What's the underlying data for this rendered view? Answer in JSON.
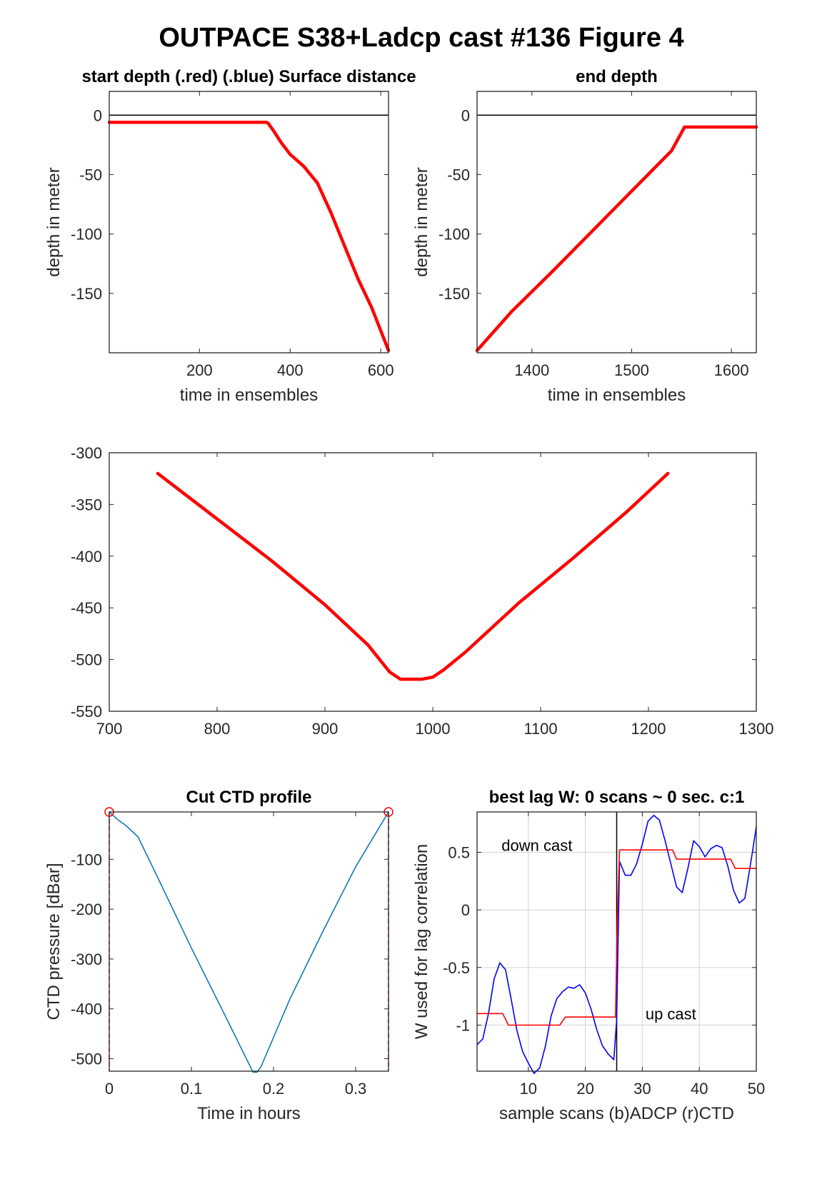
{
  "figure": {
    "title": "OUTPACE S38+Ladcp cast #136   Figure 4"
  },
  "chart_data": [
    {
      "id": "start",
      "type": "line",
      "title": "start depth (.red) (.blue) Surface distance",
      "xlabel": "time in ensembles",
      "ylabel": "depth in meter",
      "xlim": [
        1,
        617
      ],
      "ylim": [
        -200,
        20
      ],
      "xticks": [
        200,
        400,
        600
      ],
      "yticks": [
        0,
        -50,
        -100,
        -150
      ],
      "ref_lines": [
        {
          "y": 0,
          "color": "#000000"
        }
      ],
      "series": [
        {
          "color": "#ff0000",
          "x": [
            1,
            100,
            200,
            300,
            348,
            352,
            365,
            380,
            400,
            430,
            460,
            490,
            520,
            550,
            580,
            617
          ],
          "y": [
            -6,
            -6,
            -6,
            -6,
            -6,
            -7,
            -14,
            -23,
            -33,
            -43,
            -57,
            -82,
            -110,
            -138,
            -162,
            -198
          ]
        }
      ]
    },
    {
      "id": "end",
      "type": "line",
      "title": "end depth",
      "xlabel": "time in ensembles",
      "ylabel": "depth in meter",
      "xlim": [
        1345,
        1625
      ],
      "ylim": [
        -200,
        20
      ],
      "xticks": [
        1400,
        1500,
        1600
      ],
      "yticks": [
        0,
        -50,
        -100,
        -150
      ],
      "ref_lines": [
        {
          "y": 0,
          "color": "#000000"
        }
      ],
      "series": [
        {
          "color": "#ff0000",
          "x": [
            1345,
            1380,
            1420,
            1460,
            1500,
            1540,
            1553,
            1580,
            1625
          ],
          "y": [
            -198,
            -165,
            -132,
            -98,
            -64,
            -30,
            -10,
            -10,
            -10
          ]
        }
      ]
    },
    {
      "id": "middle",
      "type": "line",
      "title": "",
      "xlabel": "",
      "ylabel": "",
      "xlim": [
        700,
        1300
      ],
      "ylim": [
        -550,
        -300
      ],
      "xticks": [
        700,
        800,
        900,
        1000,
        1100,
        1200,
        1300
      ],
      "yticks": [
        -300,
        -350,
        -400,
        -450,
        -500,
        -550
      ],
      "series": [
        {
          "color": "#ff0000",
          "x": [
            745,
            800,
            850,
            900,
            940,
            960,
            970,
            990,
            1000,
            1010,
            1030,
            1080,
            1130,
            1180,
            1218
          ],
          "y": [
            -320,
            -364,
            -404,
            -447,
            -486,
            -512,
            -519,
            -519,
            -517,
            -510,
            -493,
            -445,
            -402,
            -357,
            -320
          ]
        }
      ]
    },
    {
      "id": "ctd",
      "type": "line",
      "title": "Cut CTD profile",
      "xlabel": "Time in hours",
      "ylabel": "CTD pressure [dBar]",
      "xlim": [
        0,
        0.34
      ],
      "ylim": [
        -525,
        -5
      ],
      "xticks": [
        0,
        0.1,
        0.2,
        0.3
      ],
      "xtick_labels": [
        "0",
        "0.1",
        "0.2",
        "0.3"
      ],
      "yticks": [
        -100,
        -200,
        -300,
        -400,
        -500
      ],
      "series": [
        {
          "color": "#0072bd",
          "x": [
            0,
            0.01,
            0.02,
            0.035,
            0.06,
            0.1,
            0.14,
            0.175,
            0.18,
            0.185,
            0.22,
            0.26,
            0.3,
            0.34
          ],
          "y": [
            -5,
            -20,
            -32,
            -55,
            -140,
            -278,
            -410,
            -527,
            -527,
            -515,
            -380,
            -245,
            -115,
            -5
          ]
        }
      ],
      "cut_markers": [
        {
          "x": 0,
          "y": -5
        },
        {
          "x": 0.34,
          "y": -5
        }
      ],
      "cut_lines_x": [
        0,
        0.34
      ]
    },
    {
      "id": "lag",
      "type": "line",
      "title": "best lag W: 0 scans ~ 0 sec.  c:1",
      "xlabel": "sample scans (b)ADCP (r)CTD",
      "ylabel": "W used for lag correlation",
      "xlim": [
        1,
        50
      ],
      "ylim": [
        -1.4,
        0.85
      ],
      "xticks": [
        10,
        20,
        30,
        40,
        50
      ],
      "yticks": [
        0.5,
        0,
        -0.5,
        -1
      ],
      "ytick_labels": [
        "0.5",
        "0",
        "-0.5",
        "-1"
      ],
      "grid": true,
      "divider_x": 25.5,
      "annotations": [
        "down cast",
        "up cast"
      ],
      "series": [
        {
          "name": "(b)ADCP",
          "color": "#0000ff",
          "x": [
            1,
            2,
            3,
            4,
            5,
            6,
            7,
            8,
            9,
            10,
            11,
            12,
            13,
            14,
            15,
            16,
            17,
            18,
            19,
            20,
            21,
            22,
            23,
            24,
            25,
            25.5,
            26,
            27,
            28,
            29,
            30,
            31,
            32,
            33,
            34,
            35,
            36,
            37,
            38,
            39,
            40,
            41,
            42,
            43,
            44,
            45,
            46,
            47,
            48,
            49,
            50
          ],
          "y": [
            -1.17,
            -1.12,
            -0.9,
            -0.6,
            -0.46,
            -0.52,
            -0.78,
            -1.05,
            -1.23,
            -1.33,
            -1.42,
            -1.37,
            -1.18,
            -0.92,
            -0.77,
            -0.71,
            -0.67,
            -0.68,
            -0.65,
            -0.72,
            -0.86,
            -1.04,
            -1.18,
            -1.25,
            -1.3,
            -0.95,
            0.42,
            0.3,
            0.3,
            0.4,
            0.57,
            0.77,
            0.82,
            0.78,
            0.6,
            0.4,
            0.2,
            0.15,
            0.36,
            0.6,
            0.55,
            0.46,
            0.53,
            0.56,
            0.54,
            0.38,
            0.17,
            0.06,
            0.1,
            0.4,
            0.72
          ]
        },
        {
          "name": "(r)CTD",
          "color": "#ff0000",
          "x": [
            1,
            5.5,
            6.5,
            15.5,
            16.5,
            25.3,
            25.6,
            26,
            35.3,
            36,
            45.5,
            46.3,
            50
          ],
          "y": [
            -0.9,
            -0.9,
            -1.0,
            -1.0,
            -0.93,
            -0.93,
            -0.1,
            0.52,
            0.52,
            0.44,
            0.44,
            0.36,
            0.36
          ]
        }
      ]
    }
  ]
}
